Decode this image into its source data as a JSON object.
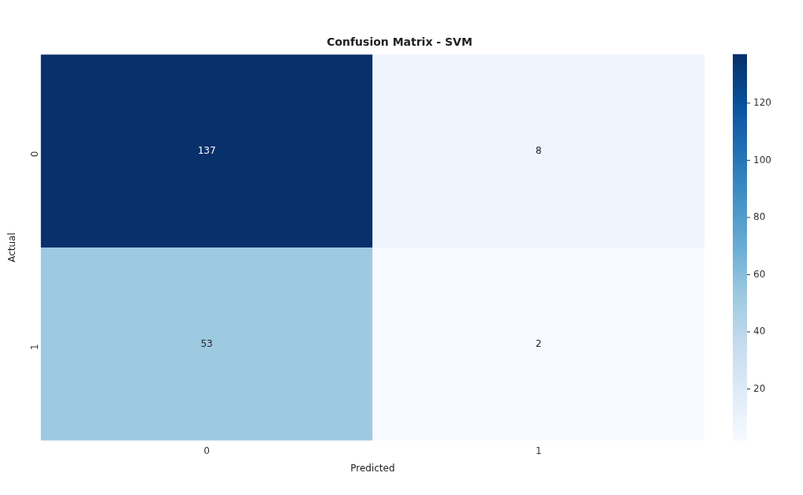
{
  "chart_data": {
    "type": "heatmap",
    "title": "Confusion Matrix - SVM",
    "xlabel": "Predicted",
    "ylabel": "Actual",
    "categories": [
      "0",
      "1"
    ],
    "y_categories": [
      "0",
      "1"
    ],
    "cells": [
      [
        137,
        8
      ],
      [
        53,
        2
      ]
    ],
    "clim": [
      2,
      137
    ],
    "cticks": [
      20,
      40,
      60,
      80,
      100,
      120
    ],
    "data_labels": true
  }
}
